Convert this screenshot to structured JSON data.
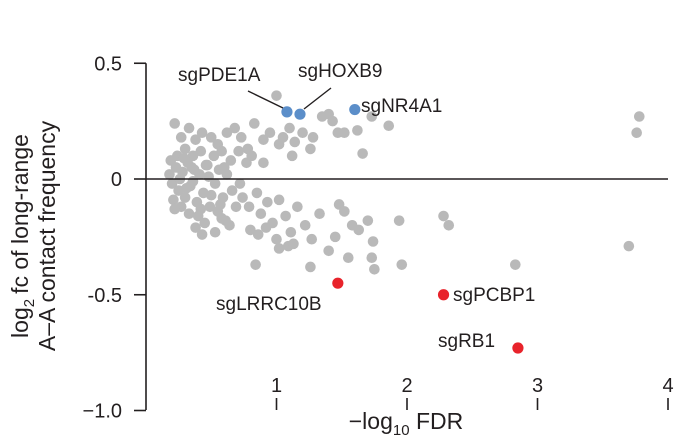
{
  "chart_data": {
    "type": "scatter",
    "xlabel": {
      "prefix": "−log",
      "sub": "10",
      "suffix": " FDR"
    },
    "ylabel": {
      "line1_prefix": "log",
      "line1_sub": "2",
      "line1_suffix": "fc of long-range",
      "line2": "A–A contact frequency"
    },
    "xlim": [
      0,
      4
    ],
    "ylim": [
      -1.0,
      0.5
    ],
    "x_ticks": [
      {
        "value": 1,
        "label": "1"
      },
      {
        "value": 2,
        "label": "2"
      },
      {
        "value": 3,
        "label": "3"
      },
      {
        "value": 4,
        "label": "4"
      }
    ],
    "y_ticks": [
      {
        "value": 0.5,
        "label": "0.5"
      },
      {
        "value": 0,
        "label": "0"
      },
      {
        "value": -0.5,
        "label": "-0.5"
      },
      {
        "value": -1.0,
        "label": "−1.0"
      }
    ],
    "colors": {
      "other": "#b9b9b9",
      "up": "#5b8ec9",
      "down": "#e8232b",
      "axis": "#231f20"
    },
    "highlighted": [
      {
        "name": "sgPDE1A",
        "x": 1.08,
        "y": 0.29,
        "group": "up"
      },
      {
        "name": "sgHOXB9",
        "x": 1.18,
        "y": 0.28,
        "group": "up"
      },
      {
        "name": "sgNR4A1",
        "x": 1.6,
        "y": 0.3,
        "group": "up"
      },
      {
        "name": "sgLRRC10B",
        "x": 1.47,
        "y": -0.45,
        "group": "down"
      },
      {
        "name": "sgPCBP1",
        "x": 2.28,
        "y": -0.5,
        "group": "down"
      },
      {
        "name": "sgRB1",
        "x": 2.85,
        "y": -0.73,
        "group": "down"
      }
    ],
    "other_points": [
      [
        0.22,
        0.24
      ],
      [
        0.27,
        0.18
      ],
      [
        0.33,
        0.22
      ],
      [
        0.38,
        0.17
      ],
      [
        0.43,
        0.2
      ],
      [
        0.5,
        0.18
      ],
      [
        0.55,
        0.15
      ],
      [
        0.62,
        0.2
      ],
      [
        0.68,
        0.22
      ],
      [
        0.73,
        0.18
      ],
      [
        0.78,
        0.13
      ],
      [
        0.83,
        0.24
      ],
      [
        0.9,
        0.17
      ],
      [
        0.95,
        0.2
      ],
      [
        1.0,
        0.36
      ],
      [
        1.05,
        0.18
      ],
      [
        1.1,
        0.22
      ],
      [
        1.14,
        0.16
      ],
      [
        1.2,
        0.2
      ],
      [
        1.28,
        0.18
      ],
      [
        1.35,
        0.27
      ],
      [
        1.4,
        0.28
      ],
      [
        1.43,
        0.25
      ],
      [
        1.47,
        0.2
      ],
      [
        1.52,
        0.2
      ],
      [
        1.62,
        0.21
      ],
      [
        1.66,
        0.11
      ],
      [
        1.73,
        0.27
      ],
      [
        1.86,
        0.23
      ],
      [
        3.78,
        0.27
      ],
      [
        3.76,
        0.2
      ],
      [
        0.36,
        0.1
      ],
      [
        0.42,
        0.12
      ],
      [
        0.52,
        0.1
      ],
      [
        0.58,
        0.12
      ],
      [
        0.65,
        0.08
      ],
      [
        0.71,
        0.12
      ],
      [
        0.77,
        0.07
      ],
      [
        0.81,
        0.1
      ],
      [
        0.9,
        0.07
      ],
      [
        1.02,
        0.15
      ],
      [
        1.12,
        0.1
      ],
      [
        1.26,
        0.13
      ],
      [
        0.3,
        0.13
      ],
      [
        0.47,
        0.06
      ],
      [
        0.6,
        0.05
      ],
      [
        0.18,
        0.02
      ],
      [
        0.2,
        -0.02
      ],
      [
        0.23,
        0.05
      ],
      [
        0.25,
        -0.05
      ],
      [
        0.28,
        0.03
      ],
      [
        0.3,
        -0.08
      ],
      [
        0.32,
        0.07
      ],
      [
        0.34,
        -0.03
      ],
      [
        0.37,
        0.04
      ],
      [
        0.39,
        -0.1
      ],
      [
        0.41,
        0.02
      ],
      [
        0.44,
        -0.06
      ],
      [
        0.46,
        0.06
      ],
      [
        0.49,
        -0.12
      ],
      [
        0.53,
        -0.02
      ],
      [
        0.56,
        0.04
      ],
      [
        0.59,
        -0.08
      ],
      [
        0.62,
        0.02
      ],
      [
        0.66,
        -0.05
      ],
      [
        0.19,
        0.08
      ],
      [
        0.21,
        -0.09
      ],
      [
        0.24,
        0.1
      ],
      [
        0.27,
        -0.12
      ],
      [
        0.33,
        -0.15
      ],
      [
        0.36,
        -0.01
      ],
      [
        0.4,
        -0.16
      ],
      [
        0.45,
        -0.19
      ],
      [
        0.5,
        -0.07
      ],
      [
        0.55,
        -0.14
      ],
      [
        0.61,
        -0.18
      ],
      [
        0.26,
        0.0
      ],
      [
        0.29,
        0.09
      ],
      [
        0.31,
        -0.04
      ],
      [
        0.35,
        0.05
      ],
      [
        0.42,
        -0.13
      ],
      [
        0.48,
        0.01
      ],
      [
        0.57,
        -0.11
      ],
      [
        0.64,
        -0.2
      ],
      [
        0.69,
        -0.12
      ],
      [
        0.72,
        -0.02
      ],
      [
        0.22,
        -0.13
      ],
      [
        0.38,
        -0.21
      ],
      [
        0.53,
        -0.23
      ],
      [
        0.43,
        -0.24
      ],
      [
        0.58,
        -0.17
      ],
      [
        0.74,
        -0.08
      ],
      [
        0.79,
        -0.12
      ],
      [
        0.85,
        -0.06
      ],
      [
        0.88,
        -0.15
      ],
      [
        0.93,
        -0.1
      ],
      [
        0.97,
        -0.19
      ],
      [
        1.02,
        -0.09
      ],
      [
        1.07,
        -0.16
      ],
      [
        1.11,
        -0.23
      ],
      [
        1.16,
        -0.12
      ],
      [
        1.22,
        -0.2
      ],
      [
        1.27,
        -0.26
      ],
      [
        1.33,
        -0.15
      ],
      [
        0.8,
        -0.22
      ],
      [
        0.86,
        -0.24
      ],
      [
        0.92,
        -0.21
      ],
      [
        1.0,
        -0.26
      ],
      [
        1.09,
        -0.29
      ],
      [
        1.48,
        -0.11
      ],
      [
        1.52,
        -0.14
      ],
      [
        1.58,
        -0.2
      ],
      [
        1.63,
        -0.22
      ],
      [
        1.7,
        -0.18
      ],
      [
        1.74,
        -0.27
      ],
      [
        1.94,
        -0.18
      ],
      [
        1.45,
        -0.25
      ],
      [
        1.55,
        -0.34
      ],
      [
        1.26,
        -0.38
      ],
      [
        1.4,
        -0.31
      ],
      [
        1.73,
        -0.34
      ],
      [
        1.75,
        -0.39
      ],
      [
        1.96,
        -0.37
      ],
      [
        2.28,
        -0.16
      ],
      [
        2.32,
        -0.2
      ],
      [
        2.83,
        -0.37
      ],
      [
        3.7,
        -0.29
      ],
      [
        0.84,
        -0.37
      ],
      [
        1.02,
        -0.3
      ],
      [
        1.13,
        -0.28
      ]
    ]
  }
}
